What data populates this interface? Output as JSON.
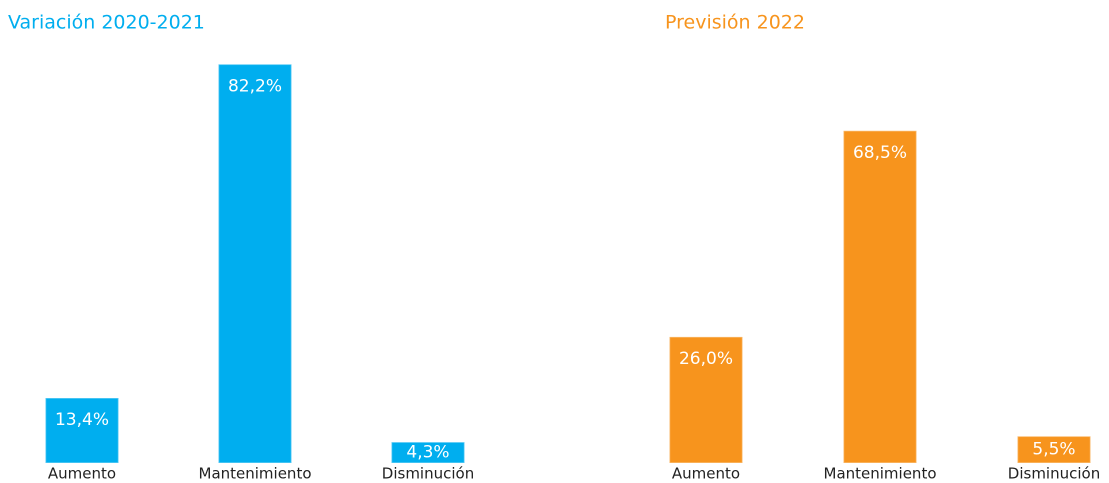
{
  "chart_data": [
    {
      "type": "bar",
      "title": "Variación 2020-2021",
      "categories": [
        "Aumento",
        "Mantenimiento",
        "Disminución"
      ],
      "values": [
        13.4,
        82.2,
        4.3
      ],
      "value_labels": [
        "13,4%",
        "82,2%",
        "4,3%"
      ],
      "color": "#00aeef"
    },
    {
      "type": "bar",
      "title": "Previsión 2022",
      "categories": [
        "Aumento",
        "Mantenimiento",
        "Disminución"
      ],
      "values": [
        26.0,
        68.5,
        5.5
      ],
      "value_labels": [
        "26,0%",
        "68,5%",
        "5,5%"
      ],
      "color": "#f7941d"
    }
  ]
}
